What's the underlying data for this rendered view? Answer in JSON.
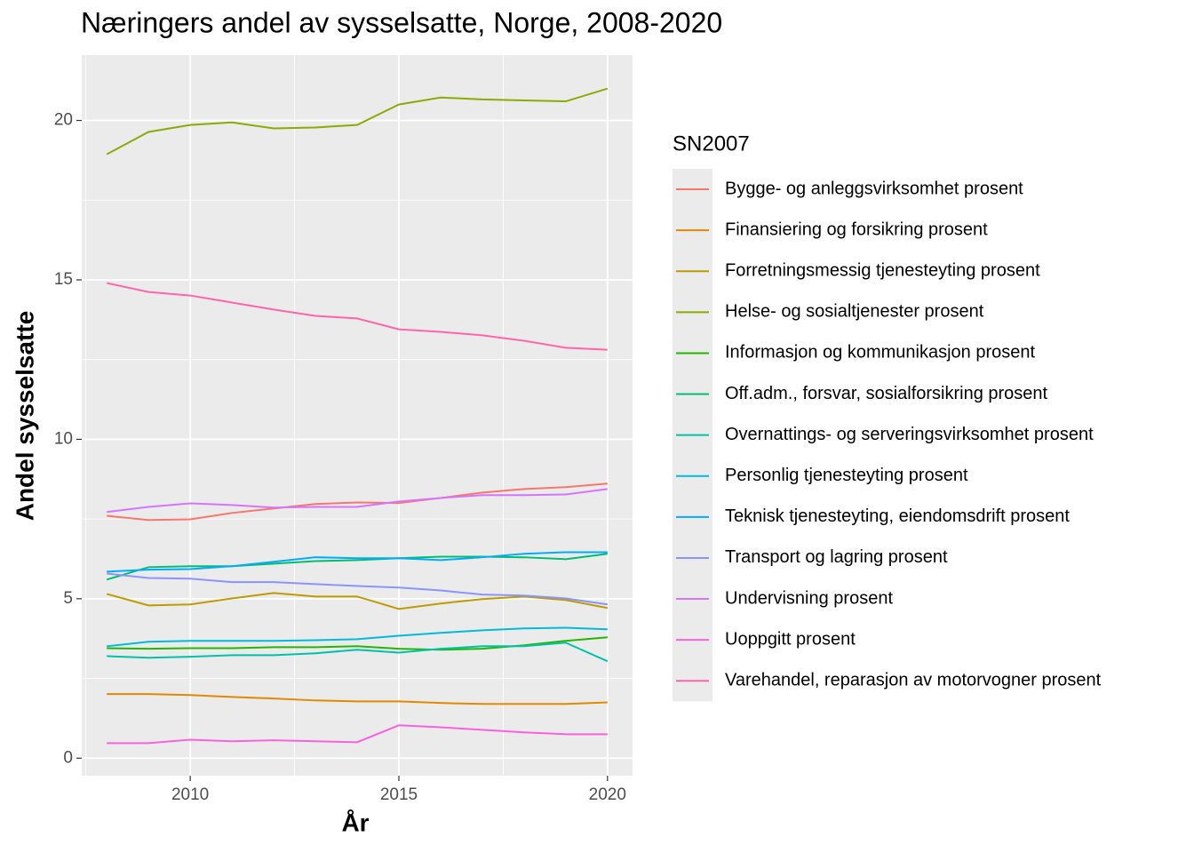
{
  "chart_data": {
    "type": "line",
    "title": "Næringers andel av sysselsatte, Norge, 2008-2020",
    "x_label": "År",
    "y_label": "Andel sysselsatte",
    "legend_title": "SN2007",
    "legend_position": "right",
    "grid": true,
    "minor_grid": true,
    "x": [
      2008,
      2009,
      2010,
      2011,
      2012,
      2013,
      2014,
      2015,
      2016,
      2017,
      2018,
      2019,
      2020
    ],
    "xlim": [
      2007.4,
      2020.6
    ],
    "xticks": [
      2010,
      2015,
      2020
    ],
    "ylim": [
      -0.55,
      22.05
    ],
    "yticks": [
      0,
      5,
      10,
      15,
      20
    ],
    "series": [
      {
        "name": "Bygge- og anleggsvirksomhet prosent",
        "color": "#F8766D",
        "values": [
          7.6,
          7.47,
          7.49,
          7.69,
          7.83,
          7.97,
          8.02,
          8.0,
          8.16,
          8.33,
          8.44,
          8.5,
          8.61
        ]
      },
      {
        "name": "Finansiering og forsikring prosent",
        "color": "#E18A00",
        "values": [
          2.01,
          2.01,
          1.98,
          1.92,
          1.87,
          1.81,
          1.78,
          1.78,
          1.73,
          1.7,
          1.7,
          1.7,
          1.75
        ]
      },
      {
        "name": "Forretningsmessig tjenesteyting prosent",
        "color": "#BE9C00",
        "values": [
          5.15,
          4.79,
          4.82,
          5.01,
          5.18,
          5.07,
          5.07,
          4.68,
          4.85,
          4.99,
          5.07,
          4.96,
          4.71
        ]
      },
      {
        "name": "Helse- og sosialtjenester prosent",
        "color": "#8CAB00",
        "values": [
          18.94,
          19.64,
          19.86,
          19.94,
          19.75,
          19.78,
          19.86,
          20.5,
          20.72,
          20.66,
          20.63,
          20.6,
          21.0
        ]
      },
      {
        "name": "Informasjon og kommunikasjon prosent",
        "color": "#24B700",
        "values": [
          3.45,
          3.43,
          3.45,
          3.45,
          3.48,
          3.48,
          3.51,
          3.43,
          3.4,
          3.43,
          3.54,
          3.68,
          3.79
        ]
      },
      {
        "name": "Off.adm., forsvar, sosialforsikring prosent",
        "color": "#00BE70",
        "values": [
          5.6,
          5.99,
          6.02,
          6.02,
          6.1,
          6.18,
          6.21,
          6.27,
          6.32,
          6.32,
          6.3,
          6.24,
          6.41
        ]
      },
      {
        "name": "Overnattings- og serveringsvirksomhet prosent",
        "color": "#00C1AB",
        "values": [
          3.2,
          3.15,
          3.18,
          3.23,
          3.23,
          3.29,
          3.4,
          3.31,
          3.43,
          3.51,
          3.51,
          3.62,
          3.04
        ]
      },
      {
        "name": "Personlig tjenesteyting prosent",
        "color": "#00BBDA",
        "values": [
          3.51,
          3.65,
          3.68,
          3.68,
          3.68,
          3.7,
          3.73,
          3.84,
          3.93,
          4.01,
          4.07,
          4.09,
          4.04
        ]
      },
      {
        "name": "Teknisk tjenesteyting, eiendomsdrift prosent",
        "color": "#00ACFC",
        "values": [
          5.85,
          5.91,
          5.93,
          6.02,
          6.16,
          6.3,
          6.27,
          6.27,
          6.21,
          6.3,
          6.41,
          6.46,
          6.46
        ]
      },
      {
        "name": "Transport og lagring prosent",
        "color": "#8B93FF",
        "values": [
          5.79,
          5.65,
          5.63,
          5.52,
          5.52,
          5.46,
          5.4,
          5.35,
          5.26,
          5.13,
          5.1,
          5.01,
          4.82
        ]
      },
      {
        "name": "Undervisning prosent",
        "color": "#D575FE",
        "values": [
          7.72,
          7.88,
          7.99,
          7.94,
          7.86,
          7.88,
          7.88,
          8.05,
          8.16,
          8.25,
          8.25,
          8.27,
          8.44
        ]
      },
      {
        "name": "Uoppgitt prosent",
        "color": "#F962DD",
        "values": [
          0.47,
          0.47,
          0.58,
          0.53,
          0.56,
          0.53,
          0.5,
          1.03,
          0.97,
          0.89,
          0.81,
          0.75,
          0.75
        ]
      },
      {
        "name": "Varehandel, reparasjon av motorvogner prosent",
        "color": "#FF65AC",
        "values": [
          14.9,
          14.62,
          14.51,
          14.29,
          14.07,
          13.87,
          13.79,
          13.45,
          13.37,
          13.26,
          13.09,
          12.87,
          12.81
        ]
      }
    ]
  }
}
